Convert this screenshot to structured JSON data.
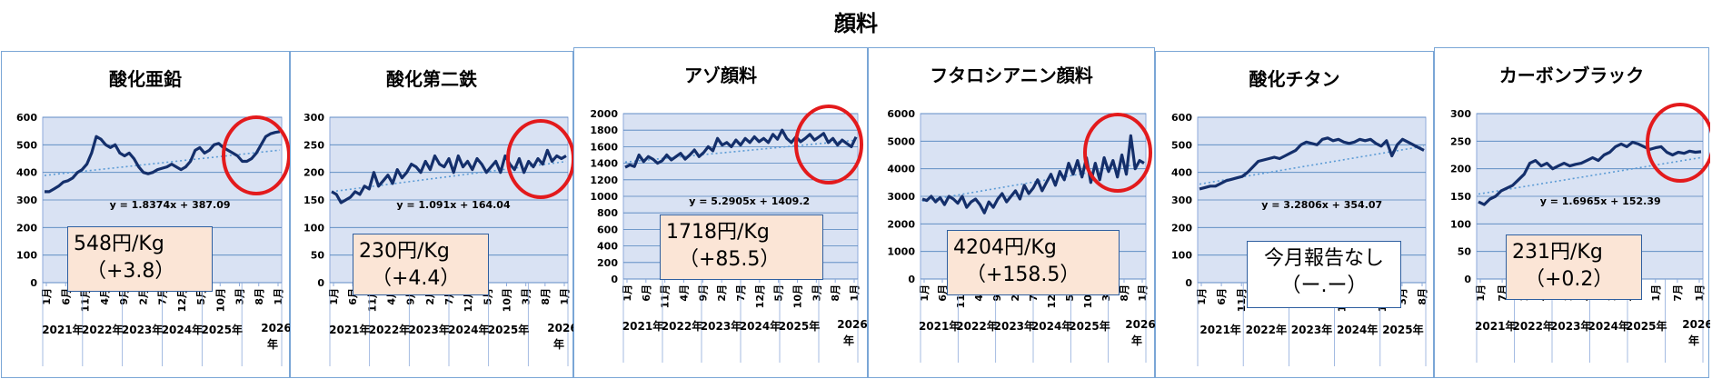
{
  "page_title": "顔料",
  "chart_data": [
    {
      "type": "line",
      "title": "酸化亜鉛",
      "ylim": [
        0,
        600
      ],
      "yticks": [
        0,
        100,
        200,
        300,
        400,
        500,
        600
      ],
      "month_ticks": [
        "1月",
        "6月",
        "11月",
        "4月",
        "9月",
        "2月",
        "7月",
        "12月",
        "5月",
        "10月",
        "3月",
        "8月",
        "1月"
      ],
      "year_labels": [
        "2021年",
        "2022年",
        "2023年",
        "2024年",
        "2025年",
        "2026年"
      ],
      "trend_label": "y = 1.8374x + 387.09",
      "trend": {
        "slope": 1.8374,
        "intercept": 387.09
      },
      "values": [
        330,
        330,
        340,
        350,
        365,
        370,
        380,
        400,
        410,
        430,
        470,
        530,
        520,
        500,
        490,
        500,
        470,
        460,
        470,
        450,
        420,
        400,
        395,
        400,
        410,
        415,
        420,
        430,
        420,
        410,
        420,
        440,
        480,
        490,
        470,
        480,
        500,
        505,
        490,
        480,
        470,
        460,
        440,
        440,
        450,
        470,
        500,
        530,
        540,
        545,
        548
      ],
      "price_line1": "548円/Kg",
      "price_line2": "（+3.8）",
      "highlight": true
    },
    {
      "type": "line",
      "title": "酸化第二鉄",
      "ylim": [
        0,
        300
      ],
      "yticks": [
        0,
        50,
        100,
        150,
        200,
        250,
        300
      ],
      "month_ticks": [
        "1月",
        "6月",
        "11月",
        "4月",
        "9月",
        "2月",
        "7月",
        "12月",
        "5月",
        "10月",
        "3月",
        "8月",
        "1月"
      ],
      "year_labels": [
        "2021年",
        "2022年",
        "2023年",
        "2024年",
        "2025年",
        "2026年"
      ],
      "trend_label": "y = 1.091x + 164.04",
      "trend": {
        "slope": 1.091,
        "intercept": 164.04
      },
      "values": [
        165,
        160,
        145,
        150,
        155,
        165,
        160,
        175,
        170,
        200,
        175,
        185,
        195,
        180,
        205,
        190,
        200,
        215,
        210,
        200,
        220,
        205,
        230,
        215,
        210,
        225,
        200,
        230,
        210,
        220,
        205,
        225,
        215,
        200,
        210,
        220,
        200,
        230,
        215,
        205,
        225,
        200,
        220,
        210,
        225,
        215,
        240,
        220,
        230,
        225,
        230
      ],
      "price_line1": "230円/Kg",
      "price_line2": "（+4.4）",
      "highlight": true
    },
    {
      "type": "line",
      "title": "アゾ顔料",
      "ylim": [
        0,
        2000
      ],
      "yticks": [
        0,
        200,
        400,
        600,
        800,
        1000,
        1200,
        1400,
        1600,
        1800,
        2000
      ],
      "month_ticks": [
        "1月",
        "6月",
        "11月",
        "4月",
        "9月",
        "2月",
        "7月",
        "12月",
        "5月",
        "10月",
        "3月",
        "8月",
        "1月"
      ],
      "year_labels": [
        "2021年",
        "2022年",
        "2023年",
        "2024年",
        "2025年",
        "2026年"
      ],
      "trend_label": "y = 5.2905x + 1409.2",
      "trend": {
        "slope": 5.2905,
        "intercept": 1409.2
      },
      "values": [
        1350,
        1380,
        1360,
        1500,
        1420,
        1480,
        1450,
        1400,
        1430,
        1500,
        1440,
        1480,
        1520,
        1450,
        1500,
        1560,
        1480,
        1530,
        1600,
        1550,
        1700,
        1620,
        1650,
        1600,
        1680,
        1620,
        1700,
        1650,
        1720,
        1660,
        1700,
        1650,
        1750,
        1690,
        1800,
        1700,
        1650,
        1720,
        1660,
        1700,
        1750,
        1680,
        1720,
        1760,
        1650,
        1700,
        1620,
        1680,
        1640,
        1600,
        1718
      ],
      "price_line1": "1718円/Kg",
      "price_line2": "（+85.5）",
      "highlight": true
    },
    {
      "type": "line",
      "title": "フタロシアニン顔料",
      "ylim": [
        0,
        6000
      ],
      "yticks": [
        0,
        1000,
        2000,
        3000,
        4000,
        5000,
        6000
      ],
      "month_ticks": [
        "1月",
        "6月",
        "11月",
        "4月",
        "9月",
        "2月",
        "7月",
        "12月",
        "5月",
        "10月",
        "3月",
        "8月",
        "1月"
      ],
      "year_labels": [
        "2021年",
        "2022年",
        "2023年",
        "2024年",
        "2025年",
        "2026年"
      ],
      "trend_label": "",
      "trend": {
        "slope": 27.5,
        "intercept": 2800
      },
      "values": [
        2900,
        2850,
        3000,
        2800,
        2950,
        2700,
        3000,
        2900,
        2750,
        3000,
        2600,
        2800,
        2900,
        2700,
        2400,
        2800,
        2600,
        2900,
        3100,
        2800,
        3000,
        3200,
        2900,
        3400,
        3100,
        3300,
        3600,
        3200,
        3500,
        3800,
        3400,
        3900,
        3600,
        4200,
        3800,
        4300,
        3700,
        4400,
        3500,
        4200,
        3600,
        4400,
        3900,
        4300,
        3700,
        4500,
        3800,
        5200,
        4000,
        4300,
        4204
      ],
      "price_line1": "4204円/Kg",
      "price_line2": "（+158.5）",
      "highlight": true
    },
    {
      "type": "line",
      "title": "酸化チタン",
      "ylim": [
        0,
        600
      ],
      "yticks": [
        0,
        100,
        200,
        300,
        400,
        500,
        600
      ],
      "month_ticks": [
        "1月",
        "6月",
        "11月",
        "4月",
        "9月",
        "2月",
        "7月",
        "12月",
        "5月",
        "10月",
        "3月",
        "8月"
      ],
      "year_labels": [
        "2021年",
        "2022年",
        "2023年",
        "2024年",
        "2025年"
      ],
      "trend_label": "y = 3.2806x + 354.07",
      "trend": {
        "slope": 3.2806,
        "intercept": 354.07
      },
      "values": [
        340,
        345,
        350,
        350,
        360,
        370,
        375,
        380,
        385,
        400,
        420,
        440,
        445,
        450,
        455,
        450,
        460,
        470,
        480,
        500,
        510,
        505,
        500,
        520,
        525,
        515,
        520,
        510,
        505,
        510,
        520,
        515,
        520,
        505,
        495,
        515,
        460,
        500,
        520,
        510,
        500,
        490,
        480
      ],
      "price_line1": "今月報告なし",
      "price_line2": "（ー.ー）",
      "highlight": false
    },
    {
      "type": "line",
      "title": "カーボンブラック",
      "ylim": [
        0,
        300
      ],
      "yticks": [
        0,
        50,
        100,
        150,
        200,
        250,
        300
      ],
      "month_ticks": [
        "1月",
        "7月",
        "1月",
        "7月",
        "1月",
        "7月",
        "1月",
        "7月",
        "1月",
        "7月",
        "1月"
      ],
      "year_labels": [
        "2021年",
        "2022年",
        "2023年",
        "2024年",
        "2025年",
        "2026年"
      ],
      "trend_label": "y = 1.6965x + 152.39",
      "trend": {
        "slope": 1.6965,
        "intercept": 152.39
      },
      "values": [
        140,
        135,
        145,
        150,
        160,
        165,
        170,
        180,
        190,
        210,
        215,
        205,
        210,
        200,
        205,
        210,
        205,
        208,
        210,
        215,
        220,
        215,
        225,
        230,
        240,
        245,
        240,
        248,
        245,
        240,
        235,
        238,
        240,
        230,
        225,
        230,
        228,
        232,
        230,
        231
      ],
      "price_line1": "231円/Kg",
      "price_line2": "（+0.2）",
      "highlight": true
    }
  ]
}
